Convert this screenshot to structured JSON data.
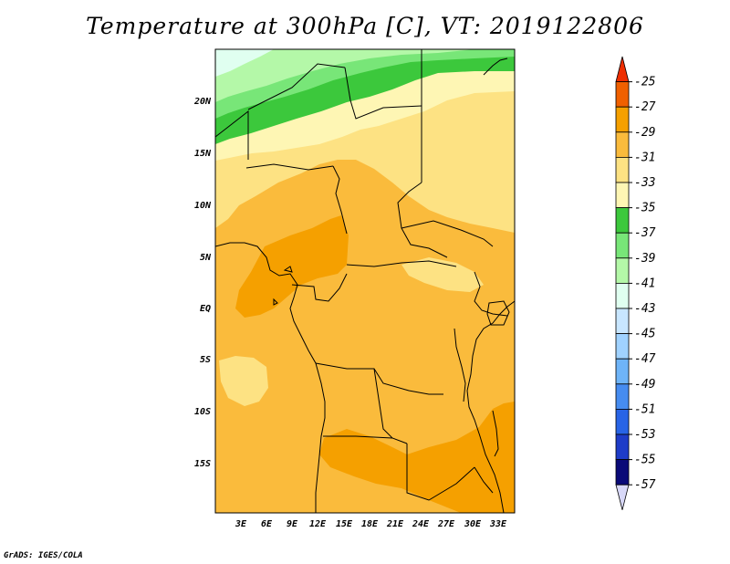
{
  "title": "Temperature at 300hPa [C], VT: 2019122806",
  "credit": "GrADS: IGES/COLA",
  "map": {
    "lat_labels": [
      "20N",
      "15N",
      "10N",
      "5N",
      "EQ",
      "5S",
      "10S",
      "15S"
    ],
    "lon_labels": [
      "3E",
      "6E",
      "9E",
      "12E",
      "15E",
      "18E",
      "21E",
      "24E",
      "27E",
      "30E",
      "33E"
    ],
    "fill_colors": {
      "level_m25": "#f06000",
      "level_m27": "#f5a000",
      "level_m29": "#fabb3c",
      "level_m31": "#fde283",
      "level_m33": "#fef6b4",
      "level_m35": "#3cc83c",
      "level_m37": "#78e678",
      "level_m39": "#b4f8a8",
      "level_m41": "#e0fff0"
    }
  },
  "colorbar": {
    "labels": [
      "-25",
      "-27",
      "-29",
      "-31",
      "-33",
      "-35",
      "-37",
      "-39",
      "-41",
      "-43",
      "-45",
      "-47",
      "-49",
      "-51",
      "-53",
      "-55",
      "-57"
    ],
    "colors": [
      "#ee2e00",
      "#f06000",
      "#f5a000",
      "#fabb3c",
      "#fde283",
      "#fef6b4",
      "#3cc83c",
      "#78e678",
      "#b4f8a8",
      "#e0fff0",
      "#c8e6ff",
      "#a0d2ff",
      "#6eb4f8",
      "#468cf0",
      "#2864e6",
      "#1e3cc8",
      "#0a0a78",
      "#d8d8f8"
    ]
  }
}
